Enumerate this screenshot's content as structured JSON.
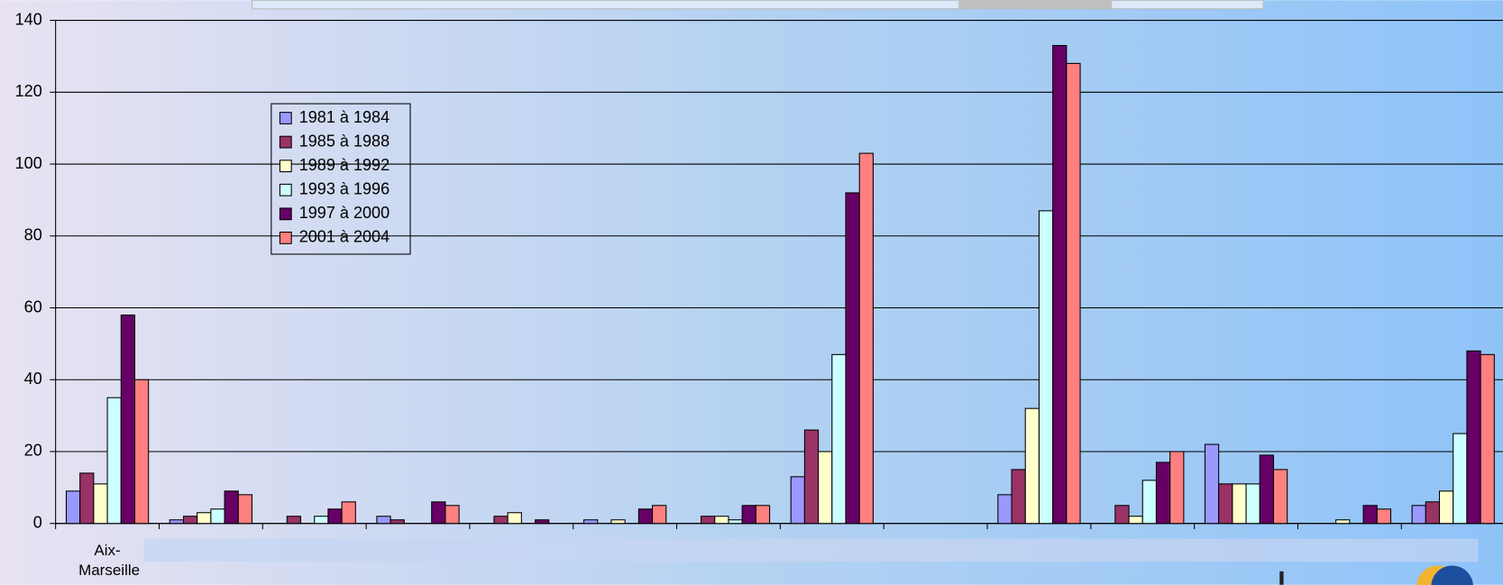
{
  "chart_data": {
    "type": "bar",
    "categories": [
      "Aix-Marseille",
      null,
      null,
      null,
      null,
      null,
      null,
      null,
      null,
      null,
      null,
      null,
      null,
      null
    ],
    "series": [
      {
        "name": "1981 à 1984",
        "color": "#9999ff",
        "values": [
          9,
          1,
          0,
          2,
          0,
          1,
          0,
          13,
          0,
          8,
          0,
          22,
          0,
          5
        ]
      },
      {
        "name": "1985 à 1988",
        "color": "#993366",
        "values": [
          14,
          2,
          2,
          1,
          2,
          0,
          2,
          26,
          0,
          15,
          5,
          11,
          0,
          6
        ]
      },
      {
        "name": "1989 à 1992",
        "color": "#ffffcc",
        "values": [
          11,
          3,
          0,
          0,
          3,
          1,
          2,
          20,
          0,
          32,
          2,
          11,
          1,
          9
        ]
      },
      {
        "name": "1993 à 1996",
        "color": "#ccffff",
        "values": [
          35,
          4,
          2,
          0,
          0,
          0,
          1,
          47,
          0,
          87,
          12,
          11,
          0,
          25
        ]
      },
      {
        "name": "1997 à 2000",
        "color": "#660066",
        "values": [
          58,
          9,
          4,
          6,
          1,
          4,
          5,
          92,
          0,
          133,
          17,
          19,
          5,
          48
        ]
      },
      {
        "name": "2001 à 2004",
        "color": "#ff8080",
        "values": [
          40,
          8,
          6,
          5,
          0,
          5,
          5,
          103,
          0,
          128,
          20,
          15,
          4,
          47
        ]
      }
    ],
    "ylim": [
      0,
      140
    ],
    "yticks": [
      0,
      20,
      40,
      60,
      80,
      100,
      120,
      140
    ],
    "grid": true,
    "legend": "upper left"
  }
}
